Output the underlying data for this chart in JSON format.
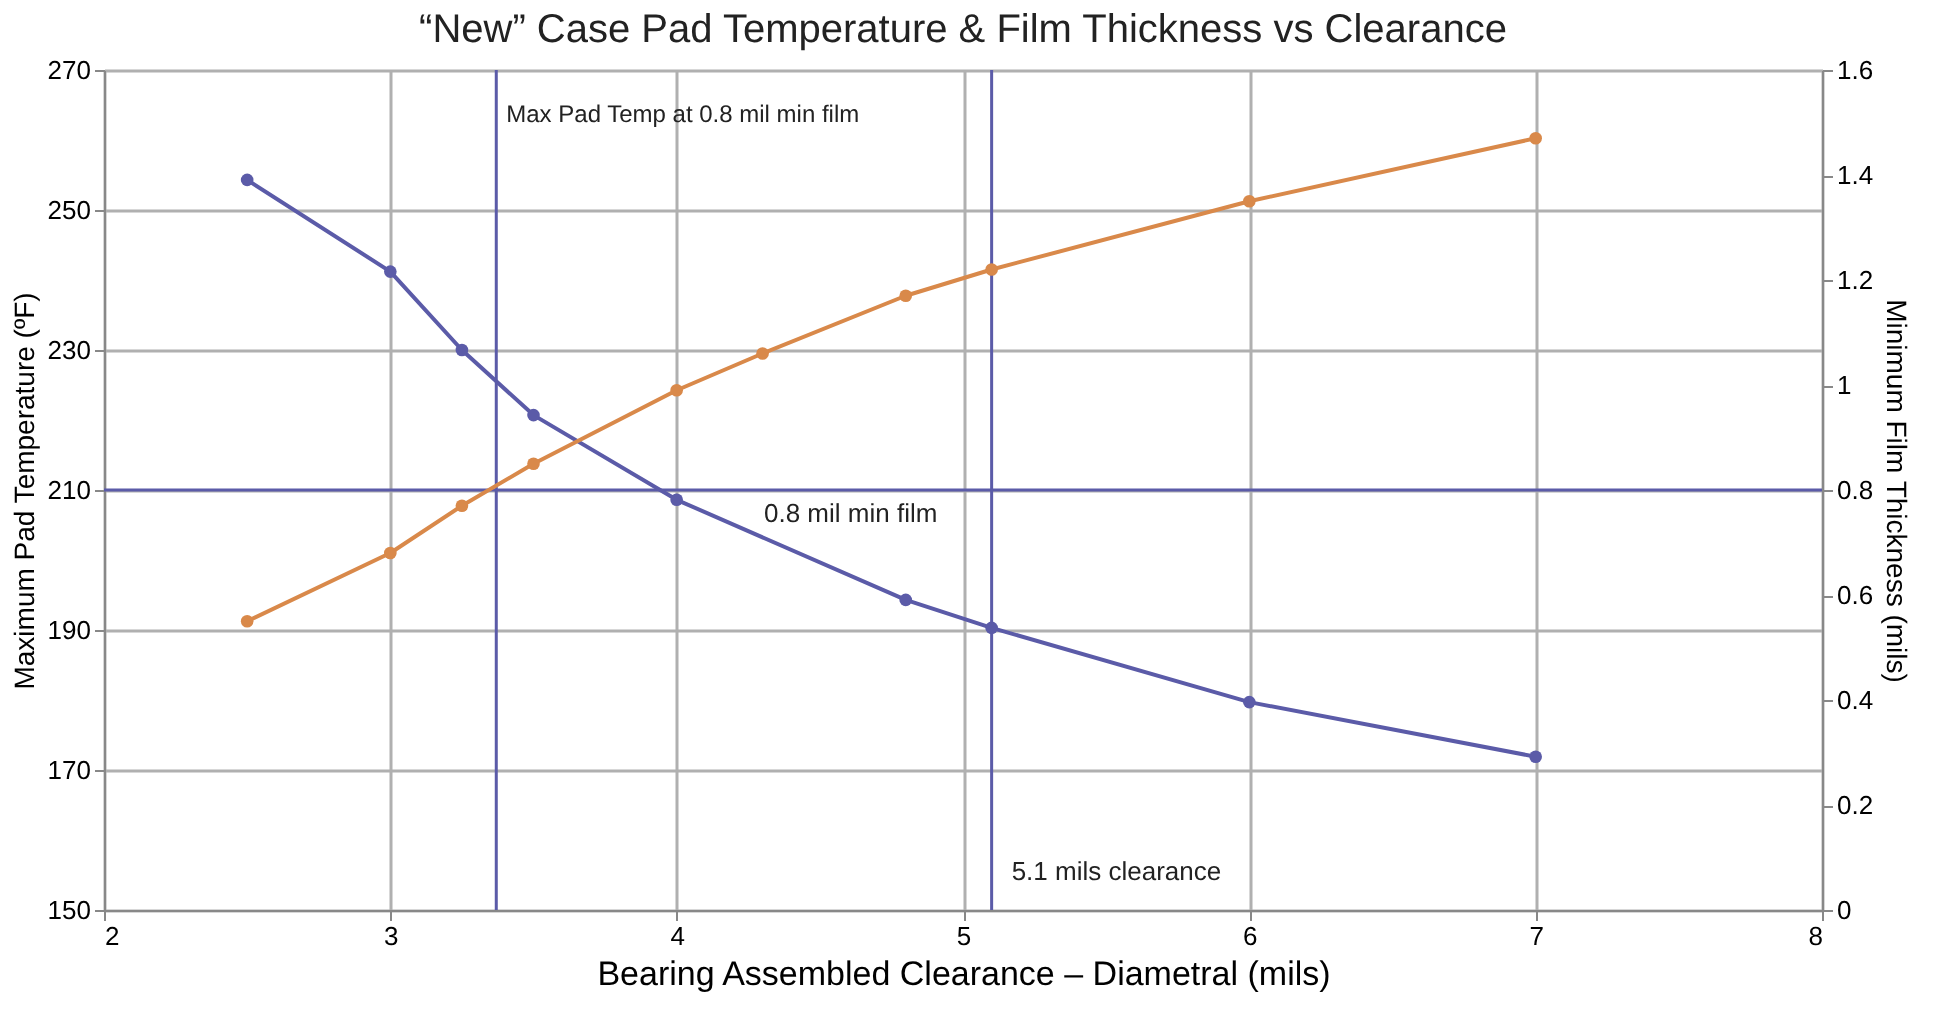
{
  "chart_data": {
    "type": "line",
    "title": "“New” Case Pad Temperature & Film Thickness vs Clearance",
    "xlabel": "Bearing Assembled Clearance – Diametral (mils)",
    "ylabel": "Maximum Pad Temperature (ºF)",
    "y2label": "Minimum Film Thickness (mils)",
    "xlim": [
      2,
      8
    ],
    "xticks": [
      2,
      3,
      4,
      5,
      6,
      7,
      8
    ],
    "ylim": [
      150,
      270
    ],
    "yticks": [
      150,
      170,
      190,
      210,
      230,
      250,
      270
    ],
    "y2lim": [
      0,
      1.6
    ],
    "y2ticks": [
      0,
      0.2,
      0.4,
      0.6,
      0.8,
      1,
      1.2,
      1.4,
      1.6
    ],
    "grid": true,
    "marker": "circle",
    "line_style": "solid",
    "series": [
      {
        "color": "#5b5ba8",
        "x": [
          2.5,
          3,
          3.25,
          3.5,
          4,
          4.8,
          5.1,
          6,
          7
        ],
        "values": [
          254.3,
          241.2,
          230.0,
          220.7,
          208.6,
          194.3,
          190.3,
          179.7,
          171.9
        ]
      },
      {
        "color": "#d9894a",
        "axis": "y2",
        "x": [
          2.5,
          3,
          3.25,
          3.5,
          4,
          4.3,
          4.8,
          5.1,
          6,
          7
        ],
        "values": [
          0.55,
          0.68,
          0.77,
          0.85,
          0.99,
          1.06,
          1.17,
          1.22,
          1.35,
          1.47
        ]
      }
    ],
    "ref_lines": [
      {
        "axis": "x",
        "value": 3.37,
        "label": "Max Pad Temp at 0.8 mil min film",
        "color": "#5b5ba8"
      },
      {
        "axis": "y",
        "value": 210,
        "label": "0.8 mil min film",
        "color": "#5b5ba8"
      },
      {
        "axis": "x",
        "value": 5.1,
        "label": "5.1 mils clearance",
        "color": "#5b5ba8"
      }
    ]
  }
}
